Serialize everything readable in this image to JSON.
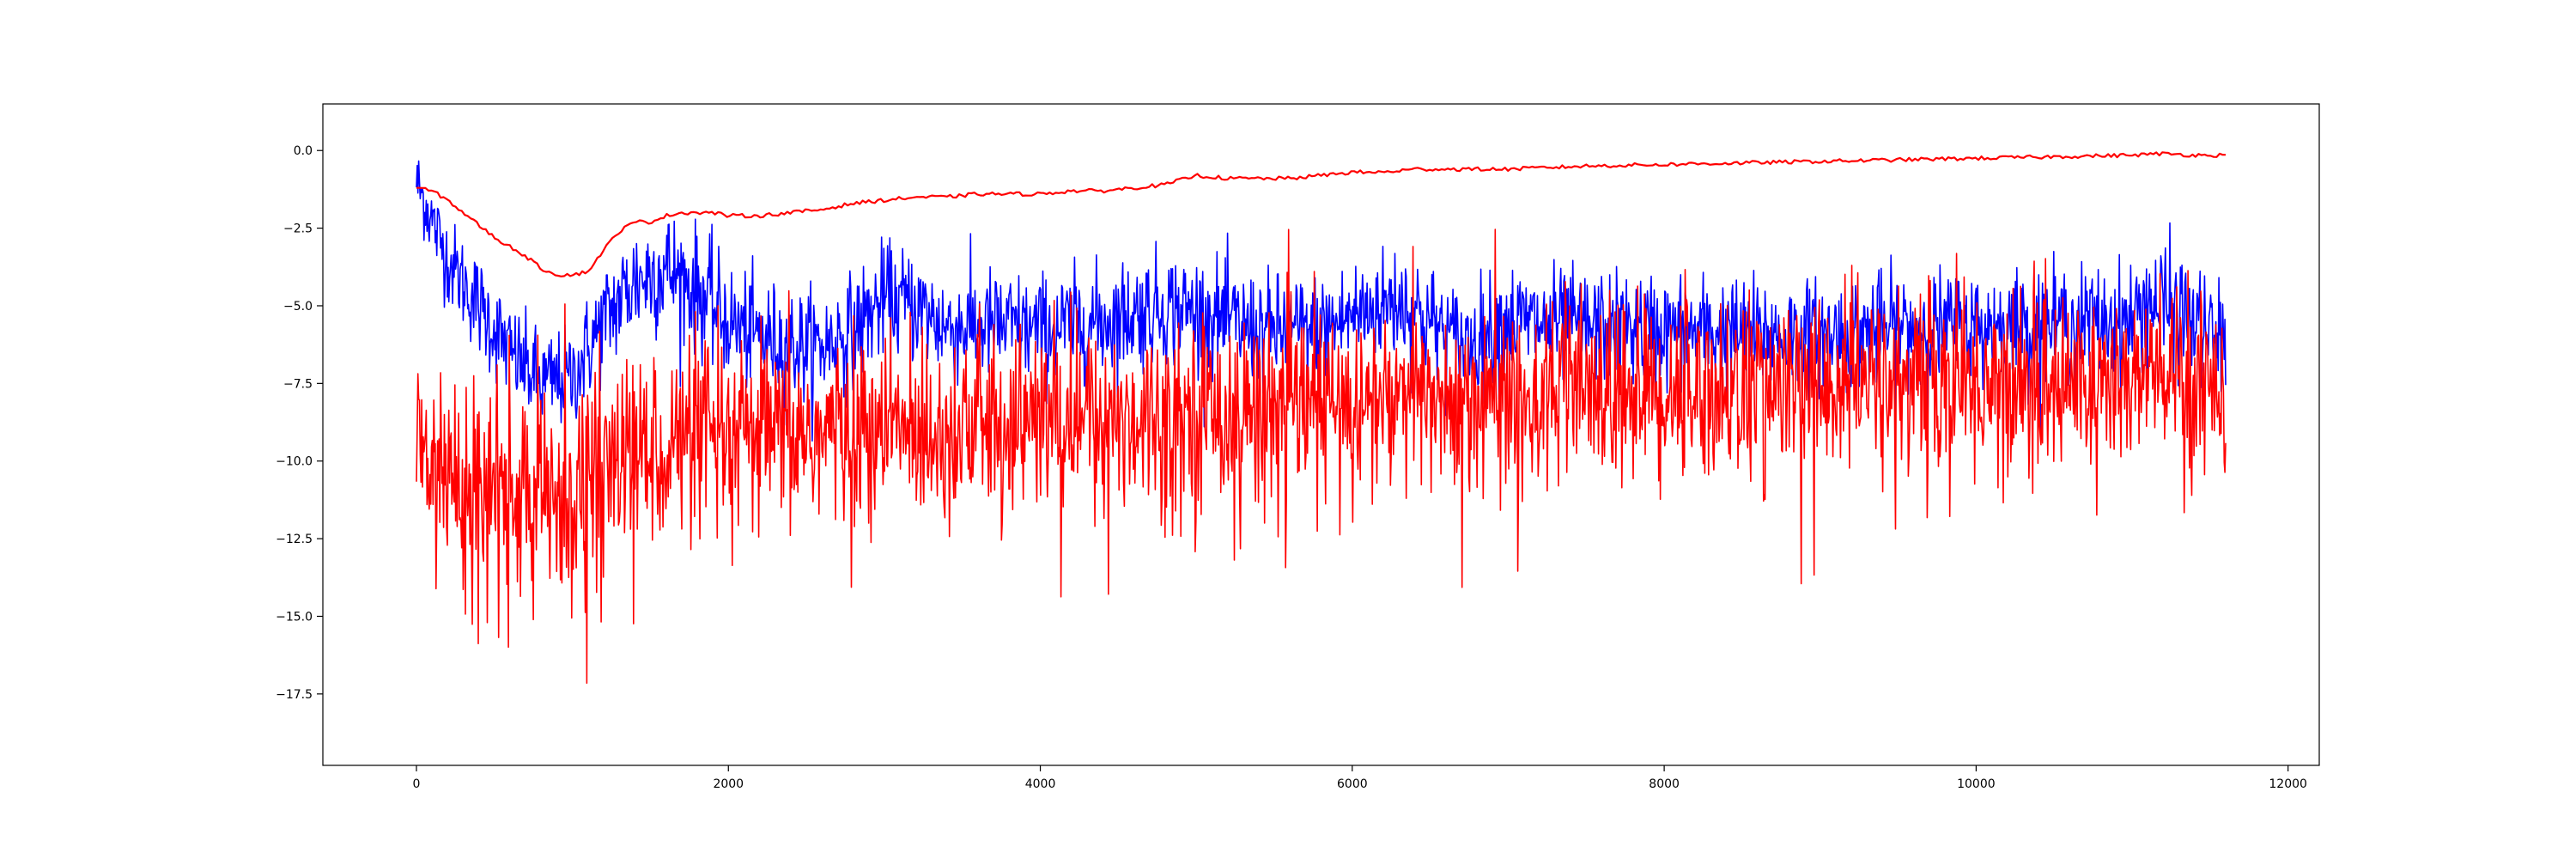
{
  "chart_data": {
    "type": "line",
    "title": "",
    "xlabel": "",
    "ylabel": "",
    "xlim": [
      -600,
      12200
    ],
    "ylim": [
      -19.8,
      1.5
    ],
    "x_ticks": [
      0,
      2000,
      4000,
      6000,
      8000,
      10000,
      12000
    ],
    "y_ticks": [
      0.0,
      -2.5,
      -5.0,
      -7.5,
      -10.0,
      -12.5,
      -15.0,
      -17.5
    ],
    "x_tick_labels": [
      "0",
      "2000",
      "4000",
      "6000",
      "8000",
      "10000",
      "12000"
    ],
    "y_tick_labels": [
      "0.0",
      "−2.5",
      "−5.0",
      "−7.5",
      "−10.0",
      "−12.5",
      "−15.0",
      "−17.5"
    ],
    "grid": false,
    "legend": "none",
    "series": [
      {
        "color": "#ff0000",
        "style": "smooth",
        "x_range": [
          0,
          11600
        ],
        "x": [
          0,
          100,
          200,
          300,
          400,
          500,
          600,
          700,
          800,
          900,
          1000,
          1100,
          1200,
          1300,
          1400,
          1500,
          1600,
          1700,
          1800,
          1900,
          2000,
          2200,
          2400,
          2600,
          2800,
          3000,
          3200,
          3400,
          3600,
          3800,
          4000,
          4200,
          4400,
          4600,
          4800,
          5000,
          5200,
          5400,
          5600,
          5800,
          6000,
          6200,
          6400,
          6600,
          6800,
          7000,
          7500,
          8000,
          8500,
          9000,
          9500,
          10000,
          10500,
          11000,
          11200,
          11400,
          11600
        ],
        "values": [
          -1.2,
          -1.3,
          -1.6,
          -2.0,
          -2.4,
          -2.8,
          -3.1,
          -3.4,
          -3.8,
          -4.0,
          -4.0,
          -3.9,
          -3.2,
          -2.6,
          -2.3,
          -2.3,
          -2.1,
          -2.0,
          -2.0,
          -2.0,
          -2.1,
          -2.1,
          -2.0,
          -1.9,
          -1.7,
          -1.6,
          -1.5,
          -1.5,
          -1.4,
          -1.4,
          -1.4,
          -1.3,
          -1.3,
          -1.2,
          -1.1,
          -0.8,
          -0.9,
          -0.9,
          -0.9,
          -0.8,
          -0.7,
          -0.7,
          -0.6,
          -0.6,
          -0.6,
          -0.6,
          -0.5,
          -0.45,
          -0.4,
          -0.35,
          -0.3,
          -0.25,
          -0.2,
          -0.15,
          -0.1,
          -0.15,
          -0.15
        ]
      },
      {
        "color": "#0000ff",
        "style": "noisy",
        "x_range": [
          0,
          11600
        ],
        "x": [
          0,
          200,
          400,
          600,
          800,
          1000,
          1200,
          1400,
          1600,
          1800,
          2000,
          2200,
          2400,
          2600,
          2800,
          3000,
          3200,
          3400,
          3600,
          3800,
          4000,
          4400,
          4800,
          5000,
          5400,
          5800,
          6000,
          6200,
          6300,
          6500,
          6700,
          7000,
          7500,
          8000,
          8500,
          9000,
          9500,
          10000,
          10500,
          11000,
          11100,
          11300,
          11500,
          11600
        ],
        "values": [
          -1.0,
          -3.5,
          -5.0,
          -6.5,
          -7.5,
          -7.3,
          -5.5,
          -4.2,
          -3.8,
          -4.5,
          -5.5,
          -6.0,
          -6.3,
          -6.3,
          -5.8,
          -4.8,
          -5.0,
          -5.7,
          -5.6,
          -5.7,
          -5.8,
          -5.5,
          -5.0,
          -5.2,
          -5.8,
          -5.8,
          -5.3,
          -5.0,
          -4.8,
          -5.5,
          -6.3,
          -5.5,
          -5.7,
          -5.8,
          -5.9,
          -6.0,
          -5.7,
          -5.7,
          -5.6,
          -5.5,
          -4.8,
          -5.2,
          -6.0,
          -6.2
        ],
        "amplitude": [
          0.6,
          0.7,
          0.8,
          0.8,
          0.8,
          0.8,
          0.9,
          1.0,
          1.0,
          1.0,
          0.9,
          0.9,
          0.9,
          0.9,
          0.9,
          0.9,
          0.9,
          0.9,
          0.9,
          0.9,
          0.9,
          0.9,
          0.9,
          0.9,
          0.9,
          0.9,
          0.9,
          0.9,
          1.0,
          0.9,
          0.9,
          0.9,
          0.9,
          0.9,
          0.9,
          0.9,
          0.9,
          0.9,
          0.9,
          0.9,
          1.0,
          1.0,
          0.9,
          0.9
        ]
      },
      {
        "color": "#ff0000",
        "style": "noisy",
        "x_range": [
          0,
          11600
        ],
        "x": [
          0,
          200,
          400,
          600,
          800,
          1000,
          1200,
          1400,
          1600,
          2000,
          2500,
          3000,
          3500,
          4000,
          4500,
          5000,
          5500,
          6000,
          6500,
          7000,
          7500,
          8000,
          8500,
          9000,
          9500,
          10000,
          10500,
          11000,
          11600
        ],
        "values": [
          -9.5,
          -10.3,
          -10.8,
          -11.2,
          -11.3,
          -11.0,
          -10.2,
          -9.8,
          -9.5,
          -9.3,
          -9.2,
          -9.0,
          -8.9,
          -8.7,
          -8.6,
          -8.4,
          -8.3,
          -8.2,
          -8.0,
          -7.9,
          -7.8,
          -7.7,
          -7.7,
          -7.6,
          -7.5,
          -7.5,
          -7.5,
          -7.4,
          -7.3
        ],
        "amplitude": [
          1.6,
          1.7,
          1.8,
          1.8,
          1.8,
          1.8,
          1.7,
          1.6,
          1.6,
          1.5,
          1.5,
          1.5,
          1.5,
          1.5,
          1.5,
          1.5,
          1.5,
          1.5,
          1.5,
          1.5,
          1.5,
          1.5,
          1.5,
          1.5,
          1.5,
          1.5,
          1.5,
          1.5,
          1.5
        ]
      }
    ]
  }
}
